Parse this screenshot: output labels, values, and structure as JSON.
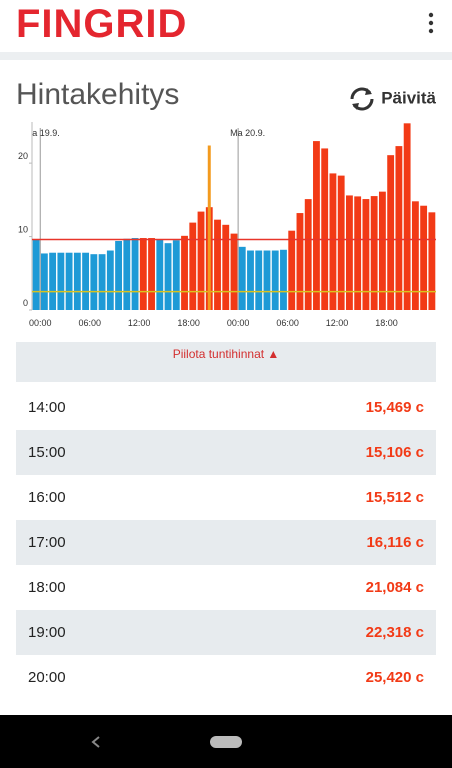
{
  "header": {
    "brand": "FINGRID"
  },
  "title": "Hintakehitys",
  "refresh_button": "Päivitä",
  "chart_data": {
    "type": "bar",
    "categories": [
      null,
      "00:00",
      null,
      null,
      null,
      null,
      null,
      "06:00",
      null,
      null,
      null,
      null,
      null,
      "12:00",
      null,
      null,
      null,
      null,
      null,
      "18:00",
      null,
      null,
      null,
      null,
      null,
      "00:00",
      null,
      null,
      null,
      null,
      null,
      "06:00",
      null,
      null,
      null,
      null,
      null,
      "12:00",
      null,
      null,
      null,
      null,
      null,
      "18:00",
      null,
      null,
      null,
      null,
      null
    ],
    "values": [
      9.6,
      7.7,
      7.8,
      7.8,
      7.8,
      7.8,
      7.8,
      7.6,
      7.6,
      8.1,
      9.4,
      9.7,
      9.8,
      9.8,
      9.8,
      9.6,
      9.1,
      9.5,
      10.1,
      11.9,
      13.4,
      14.0,
      12.3,
      11.6,
      10.4,
      8.6,
      8.1,
      8.1,
      8.1,
      8.1,
      8.2,
      10.8,
      13.2,
      15.1,
      23.0,
      22.0,
      18.6,
      18.3,
      15.6,
      15.469,
      15.106,
      15.512,
      16.116,
      21.084,
      22.318,
      25.42,
      14.8,
      14.2,
      13.3
    ],
    "colors": [
      "#1e9ad6",
      "#1e9ad6",
      "#1e9ad6",
      "#1e9ad6",
      "#1e9ad6",
      "#1e9ad6",
      "#1e9ad6",
      "#1e9ad6",
      "#1e9ad6",
      "#1e9ad6",
      "#1e9ad6",
      "#1e9ad6",
      "#1e9ad6",
      "#f23a16",
      "#f23a16",
      "#1e9ad6",
      "#1e9ad6",
      "#1e9ad6",
      "#f23a16",
      "#f23a16",
      "#f23a16",
      "#f23a16",
      "#f23a16",
      "#f23a16",
      "#f23a16",
      "#1e9ad6",
      "#1e9ad6",
      "#1e9ad6",
      "#1e9ad6",
      "#1e9ad6",
      "#1e9ad6",
      "#f23a16",
      "#f23a16",
      "#f23a16",
      "#f23a16",
      "#f23a16",
      "#f23a16",
      "#f23a16",
      "#f23a16",
      "#f23a16",
      "#f23a16",
      "#f23a16",
      "#f23a16",
      "#f23a16",
      "#f23a16",
      "#f23a16",
      "#f23a16",
      "#f23a16",
      "#f23a16"
    ],
    "ylim": [
      0,
      25.6
    ],
    "yticks": [
      0,
      10,
      20
    ],
    "reference_lines": [
      {
        "value": 9.6,
        "color": "#e8352a"
      },
      {
        "value": 2.5,
        "color": "#d9c21e"
      }
    ],
    "marker": {
      "index": 21,
      "value": 22.4,
      "color": "#f39a1e"
    },
    "day_labels": [
      {
        "index": 1,
        "label": "a 19.9."
      },
      {
        "index": 25,
        "label": "Ma 20.9."
      }
    ]
  },
  "toggle": "Piilota tuntihinnat ▲",
  "rows": [
    [
      "14:00",
      "15,469 c"
    ],
    [
      "15:00",
      "15,106 c"
    ],
    [
      "16:00",
      "15,512 c"
    ],
    [
      "17:00",
      "16,116 c"
    ],
    [
      "18:00",
      "21,084 c"
    ],
    [
      "19:00",
      "22,318 c"
    ],
    [
      "20:00",
      "25,420 c"
    ]
  ]
}
